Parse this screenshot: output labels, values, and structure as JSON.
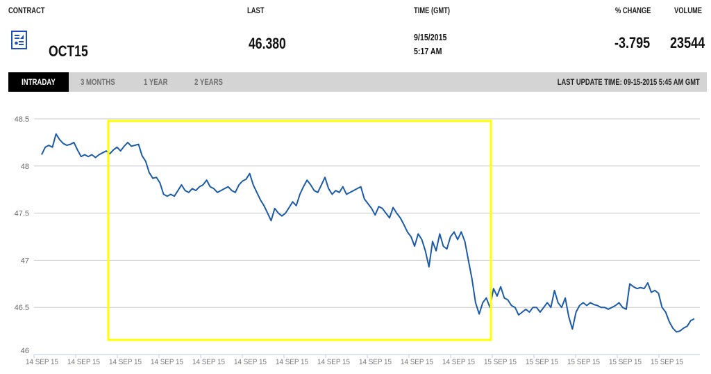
{
  "header": {
    "contract_label": "CONTRACT",
    "last_label": "LAST",
    "time_label": "TIME (GMT)",
    "change_label": "% CHANGE",
    "volume_label": "VOLUME",
    "contract_value": "OCT15",
    "contract_icon": "report-document-icon",
    "last_value": "46.380",
    "date_value": "9/15/2015",
    "time_value": "5:17 AM",
    "change_value": "-3.795",
    "volume_value": "23544"
  },
  "tabs": [
    {
      "label": "INTRADAY",
      "active": true
    },
    {
      "label": "3 MONTHS",
      "active": false
    },
    {
      "label": "1 YEAR",
      "active": false
    },
    {
      "label": "2 YEARS",
      "active": false
    }
  ],
  "last_update": "LAST UPDATE TIME: 09-15-2015 5:45 AM GMT",
  "colors": {
    "line": "#1a5aa6",
    "highlight_box": "#ffff00",
    "active_tab_bg": "#000000",
    "tab_bar_bg": "#d4d4d4",
    "grid": "#c8c8c8"
  },
  "chart_data": {
    "type": "line",
    "title": "",
    "xlabel": "",
    "ylabel": "",
    "ylim": [
      46,
      48.5
    ],
    "yticks": [
      "48.5",
      "48",
      "47.5",
      "47",
      "46.5",
      "46"
    ],
    "xticks": [
      "14 SEP 15",
      "14 SEP 15",
      "14 SEP 15",
      "14 SEP 15",
      "14 SEP 15",
      "14 SEP 15",
      "14 SEP 15",
      "14 SEP 15",
      "14 SEP 15",
      "14 SEP 15",
      "14 SEP 15",
      "15 SEP 15",
      "15 SEP 15",
      "15 SEP 15",
      "15 SEP 15",
      "15 SEP 15"
    ],
    "grid": true,
    "legend": "none",
    "series": [
      {
        "name": "OCT15",
        "values": [
          48.12,
          48.2,
          48.22,
          48.2,
          48.34,
          48.28,
          48.24,
          48.22,
          48.23,
          48.25,
          48.17,
          48.1,
          48.12,
          48.1,
          48.12,
          48.09,
          48.12,
          48.14,
          48.16,
          48.13,
          48.17,
          48.2,
          48.16,
          48.21,
          48.25,
          48.21,
          48.22,
          48.23,
          48.11,
          48.05,
          47.93,
          47.87,
          47.88,
          47.82,
          47.7,
          47.68,
          47.7,
          47.68,
          47.74,
          47.8,
          47.74,
          47.72,
          47.76,
          47.74,
          47.78,
          47.8,
          47.85,
          47.78,
          47.76,
          47.72,
          47.74,
          47.76,
          47.78,
          47.74,
          47.72,
          47.8,
          47.84,
          47.86,
          47.92,
          47.8,
          47.72,
          47.64,
          47.58,
          47.5,
          47.42,
          47.55,
          47.5,
          47.47,
          47.5,
          47.56,
          47.62,
          47.58,
          47.7,
          47.78,
          47.85,
          47.8,
          47.74,
          47.72,
          47.8,
          47.88,
          47.76,
          47.7,
          47.74,
          47.72,
          47.78,
          47.7,
          47.72,
          47.74,
          47.76,
          47.78,
          47.65,
          47.6,
          47.55,
          47.48,
          47.57,
          47.55,
          47.5,
          47.45,
          47.56,
          47.5,
          47.45,
          47.38,
          47.3,
          47.25,
          47.15,
          47.28,
          47.22,
          47.1,
          46.93,
          47.2,
          47.1,
          47.28,
          47.15,
          47.12,
          47.25,
          47.3,
          47.22,
          47.3,
          47.2,
          47.0,
          46.8,
          46.55,
          46.43,
          46.55,
          46.6,
          46.5,
          46.7,
          46.62,
          46.72,
          46.6,
          46.58,
          46.52,
          46.5,
          46.42,
          46.45,
          46.48,
          46.45,
          46.5,
          46.5,
          46.45,
          46.5,
          46.55,
          46.5,
          46.68,
          46.55,
          46.5,
          46.6,
          46.4,
          46.27,
          46.45,
          46.52,
          46.55,
          46.52,
          46.55,
          46.53,
          46.52,
          46.5,
          46.5,
          46.48,
          46.5,
          46.52,
          46.55,
          46.5,
          46.48,
          46.75,
          46.72,
          46.7,
          46.71,
          46.7,
          46.76,
          46.66,
          46.68,
          46.65,
          46.5,
          46.45,
          46.35,
          46.28,
          46.24,
          46.25,
          46.28,
          46.3,
          46.36,
          46.38
        ],
        "note": "approximate intraday prices read off the plotted line, left to right"
      }
    ],
    "annotations": [
      {
        "type": "highlight-rectangle",
        "color": "#ffff00",
        "approx_x_range": [
          "14 SEP 15 (3rd tick)",
          "15 SEP 15 (1st tick)"
        ],
        "approx_y_range": [
          46.15,
          48.48
        ]
      }
    ]
  }
}
